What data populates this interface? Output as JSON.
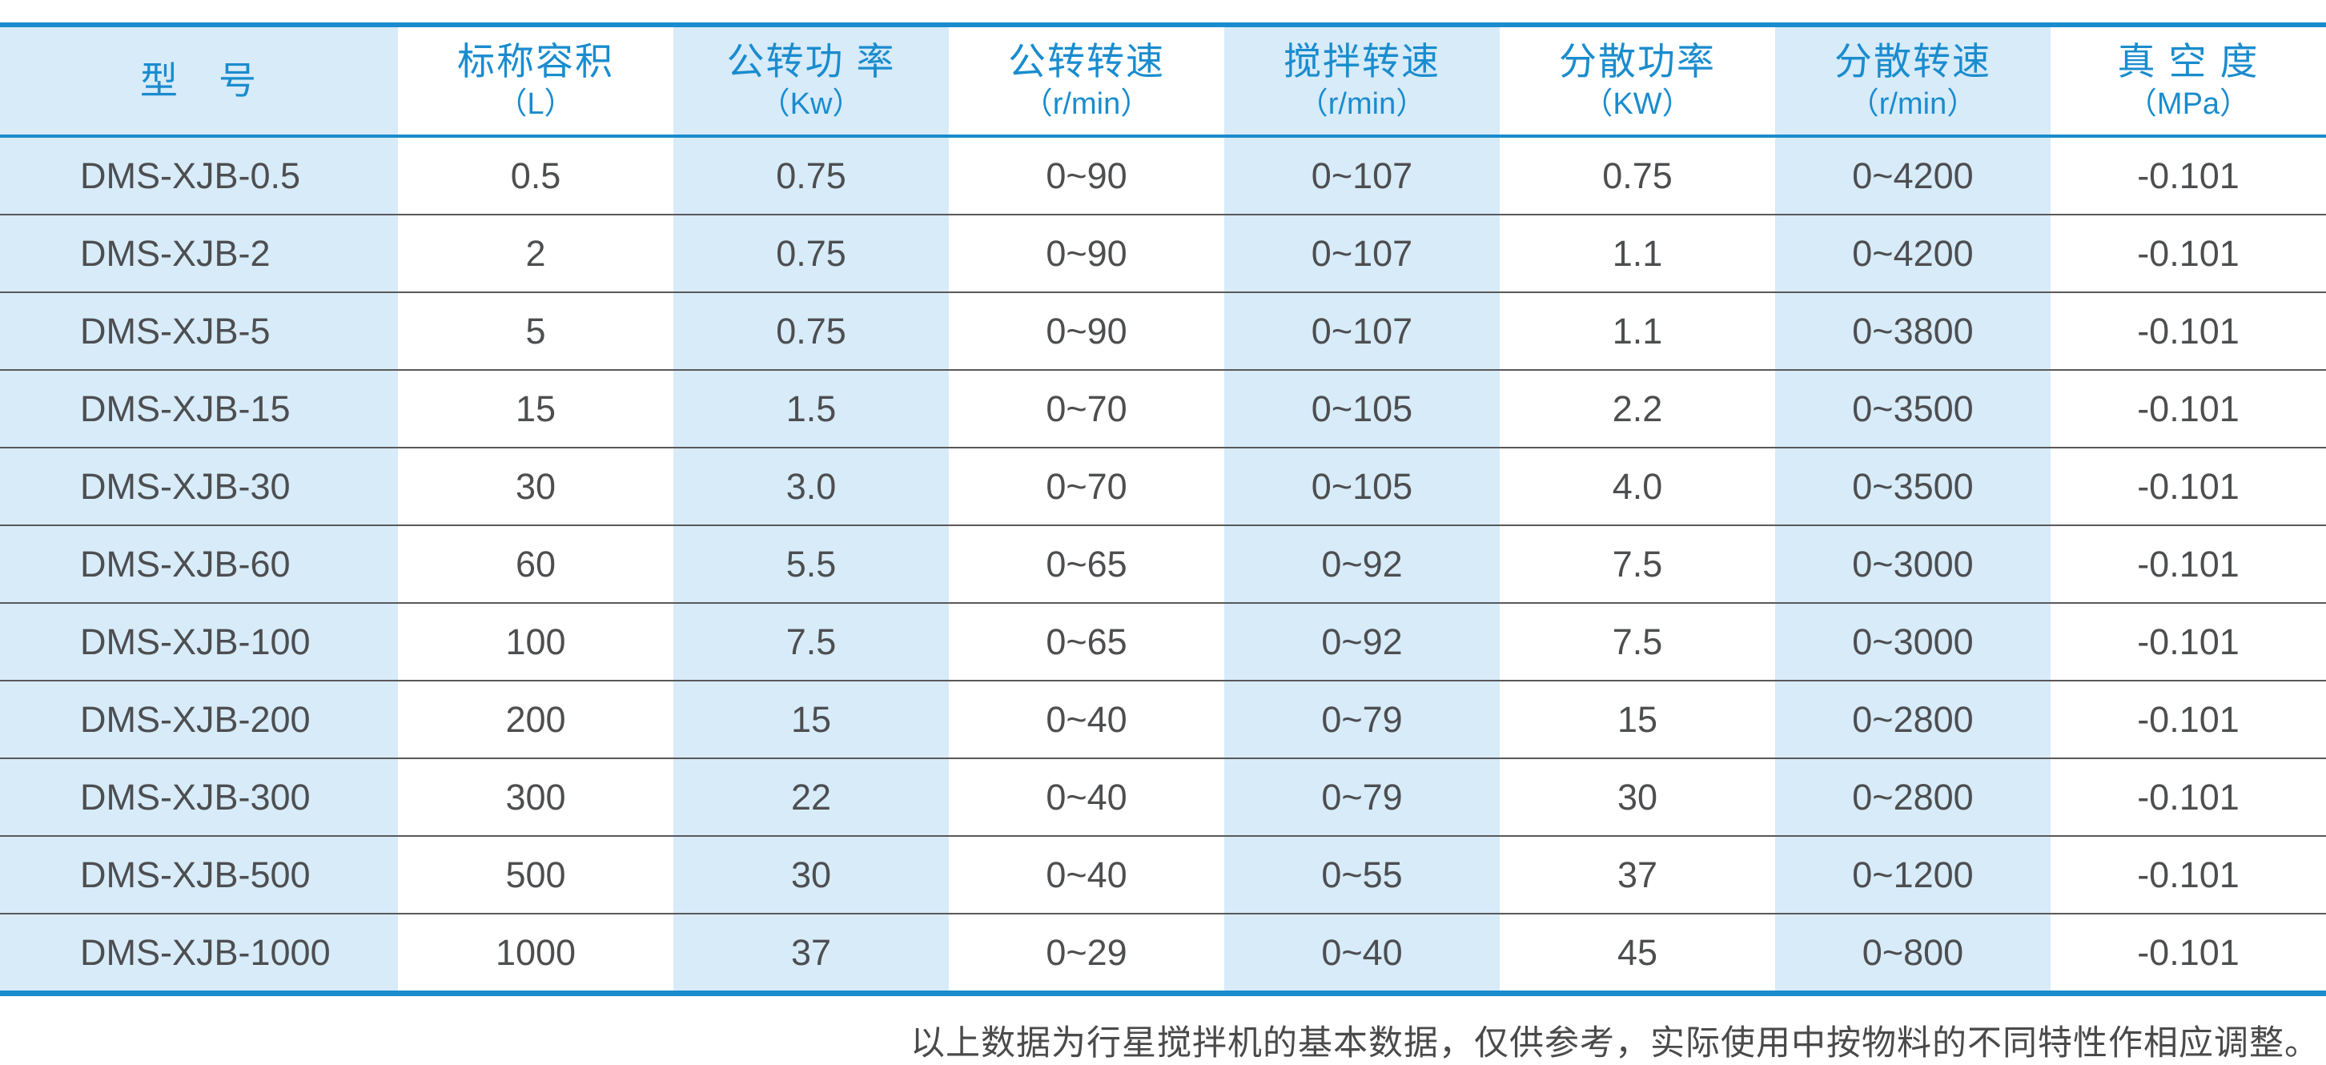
{
  "table": {
    "columns": [
      {
        "title": "型　号",
        "unit": ""
      },
      {
        "title": "标称容积",
        "unit": "（L）"
      },
      {
        "title": "公转功 率",
        "unit": "（Kw）"
      },
      {
        "title": "公转转速",
        "unit": "（r/min）"
      },
      {
        "title": "搅拌转速",
        "unit": "（r/min）"
      },
      {
        "title": "分散功率",
        "unit": "（KW）"
      },
      {
        "title": "分散转速",
        "unit": "（r/min）"
      },
      {
        "title": "真 空 度",
        "unit": "（MPa）"
      }
    ],
    "rows": [
      [
        "DMS-XJB-0.5",
        "0.5",
        "0.75",
        "0~90",
        "0~107",
        "0.75",
        "0~4200",
        "-0.101"
      ],
      [
        "DMS-XJB-2",
        "2",
        "0.75",
        "0~90",
        "0~107",
        "1.1",
        "0~4200",
        "-0.101"
      ],
      [
        "DMS-XJB-5",
        "5",
        "0.75",
        "0~90",
        "0~107",
        "1.1",
        "0~3800",
        "-0.101"
      ],
      [
        "DMS-XJB-15",
        "15",
        "1.5",
        "0~70",
        "0~105",
        "2.2",
        "0~3500",
        "-0.101"
      ],
      [
        "DMS-XJB-30",
        "30",
        "3.0",
        "0~70",
        "0~105",
        "4.0",
        "0~3500",
        "-0.101"
      ],
      [
        "DMS-XJB-60",
        "60",
        "5.5",
        "0~65",
        "0~92",
        "7.5",
        "0~3000",
        "-0.101"
      ],
      [
        "DMS-XJB-100",
        "100",
        "7.5",
        "0~65",
        "0~92",
        "7.5",
        "0~3000",
        "-0.101"
      ],
      [
        "DMS-XJB-200",
        "200",
        "15",
        "0~40",
        "0~79",
        "15",
        "0~2800",
        "-0.101"
      ],
      [
        "DMS-XJB-300",
        "300",
        "22",
        "0~40",
        "0~79",
        "30",
        "0~2800",
        "-0.101"
      ],
      [
        "DMS-XJB-500",
        "500",
        "30",
        "0~40",
        "0~55",
        "37",
        "0~1200",
        "-0.101"
      ],
      [
        "DMS-XJB-1000",
        "1000",
        "37",
        "0~29",
        "0~40",
        "45",
        "0~800",
        "-0.101"
      ]
    ]
  },
  "footer": {
    "note": "以上数据为行星搅拌机的基本数据，仅供参考，实际使用中按物料的不同特性作相应调整。"
  },
  "colors": {
    "accent_blue": "#1a8cce",
    "column_light_blue": "#d7ebf9",
    "cell_text": "#4d4e50",
    "row_separator": "#59595b",
    "footer_text": "#4a4a4b"
  }
}
